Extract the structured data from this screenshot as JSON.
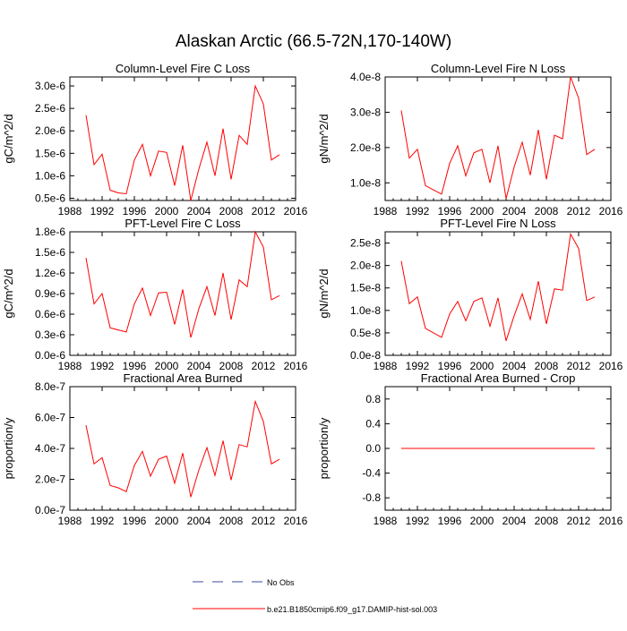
{
  "figure": {
    "title": "Alaskan Arctic (66.5-72N,170-140W)",
    "line_color": "#ff0000",
    "obs_color": "#3b4aa0",
    "axis_color": "#000000"
  },
  "legend": {
    "entries": [
      {
        "label": "No Obs",
        "style": "dashed",
        "color": "#3b4aa0"
      },
      {
        "label": "b.e21.B1850cmip6.f09_g17.DAMIP-hist-sol.003",
        "style": "solid",
        "color": "#ff0000"
      }
    ]
  },
  "chart_data": [
    {
      "type": "line",
      "title": "Column-Level Fire C Loss",
      "ylabel": "gC/m^2/d",
      "xlim": [
        1988,
        2016
      ],
      "ylim": [
        0.45,
        3.2
      ],
      "xticks": [
        1988,
        1992,
        1996,
        2000,
        2004,
        2008,
        2012,
        2016
      ],
      "yticks": [
        0.5,
        1.0,
        1.5,
        2.0,
        2.5,
        3.0
      ],
      "ytick_labels": [
        "0.5e-6",
        "1.0e-6",
        "1.5e-6",
        "2.0e-6",
        "2.5e-6",
        "3.0e-6"
      ],
      "series": [
        {
          "x": [
            1990,
            1991,
            1992,
            1993,
            1994,
            1995,
            1996,
            1997,
            1998,
            1999,
            2000,
            2001,
            2002,
            2003,
            2004,
            2005,
            2006,
            2007,
            2008,
            2009,
            2010,
            2011,
            2012,
            2013,
            2014
          ],
          "values": [
            2.35,
            1.25,
            1.48,
            0.68,
            0.62,
            0.6,
            1.35,
            1.7,
            1.0,
            1.55,
            1.52,
            0.78,
            1.68,
            0.45,
            1.15,
            1.75,
            1.0,
            2.05,
            0.92,
            1.9,
            1.7,
            3.0,
            2.6,
            1.35,
            1.47
          ]
        }
      ]
    },
    {
      "type": "line",
      "title": "Column-Level Fire N Loss",
      "ylabel": "gN/m^2/d",
      "xlim": [
        1988,
        2016
      ],
      "ylim": [
        0.5,
        4.0
      ],
      "xticks": [
        1988,
        1992,
        1996,
        2000,
        2004,
        2008,
        2012,
        2016
      ],
      "yticks": [
        1.0,
        2.0,
        3.0,
        4.0
      ],
      "ytick_labels": [
        "1.0e-8",
        "2.0e-8",
        "3.0e-8",
        "4.0e-8"
      ],
      "series": [
        {
          "x": [
            1990,
            1991,
            1992,
            1993,
            1994,
            1995,
            1996,
            1997,
            1998,
            1999,
            2000,
            2001,
            2002,
            2003,
            2004,
            2005,
            2006,
            2007,
            2008,
            2009,
            2010,
            2011,
            2012,
            2013,
            2014
          ],
          "values": [
            3.05,
            1.7,
            1.95,
            0.92,
            0.8,
            0.68,
            1.55,
            2.05,
            1.2,
            1.85,
            1.95,
            1.0,
            2.05,
            0.55,
            1.45,
            2.15,
            1.22,
            2.5,
            1.1,
            2.35,
            2.25,
            4.0,
            3.4,
            1.8,
            1.95
          ]
        }
      ]
    },
    {
      "type": "line",
      "title": "PFT-Level Fire C Loss",
      "ylabel": "gC/m^2/d",
      "xlim": [
        1988,
        2016
      ],
      "ylim": [
        0.0,
        1.8
      ],
      "xticks": [
        1988,
        1992,
        1996,
        2000,
        2004,
        2008,
        2012,
        2016
      ],
      "yticks": [
        0.0,
        0.3,
        0.6,
        0.9,
        1.2,
        1.5,
        1.8
      ],
      "ytick_labels": [
        "0.0e-6",
        "0.3e-6",
        "0.6e-6",
        "0.9e-6",
        "1.2e-6",
        "1.5e-6",
        "1.8e-6"
      ],
      "series": [
        {
          "x": [
            1990,
            1991,
            1992,
            1993,
            1994,
            1995,
            1996,
            1997,
            1998,
            1999,
            2000,
            2001,
            2002,
            2003,
            2004,
            2005,
            2006,
            2007,
            2008,
            2009,
            2010,
            2011,
            2012,
            2013,
            2014
          ],
          "values": [
            1.42,
            0.75,
            0.9,
            0.4,
            0.37,
            0.34,
            0.75,
            0.98,
            0.58,
            0.91,
            0.92,
            0.45,
            0.96,
            0.26,
            0.68,
            1.0,
            0.58,
            1.2,
            0.52,
            1.1,
            1.0,
            1.8,
            1.58,
            0.81,
            0.87
          ]
        }
      ]
    },
    {
      "type": "line",
      "title": "PFT-Level Fire N Loss",
      "ylabel": "gN/m^2/d",
      "xlim": [
        1988,
        2016
      ],
      "ylim": [
        0.0,
        2.75
      ],
      "xticks": [
        1988,
        1992,
        1996,
        2000,
        2004,
        2008,
        2012,
        2016
      ],
      "yticks": [
        0.0,
        0.5,
        1.0,
        1.5,
        2.0,
        2.5
      ],
      "ytick_labels": [
        "0.0e-8",
        "0.5e-8",
        "1.0e-8",
        "1.5e-8",
        "2.0e-8",
        "2.5e-8"
      ],
      "series": [
        {
          "x": [
            1990,
            1991,
            1992,
            1993,
            1994,
            1995,
            1996,
            1997,
            1998,
            1999,
            2000,
            2001,
            2002,
            2003,
            2004,
            2005,
            2006,
            2007,
            2008,
            2009,
            2010,
            2011,
            2012,
            2013,
            2014
          ],
          "values": [
            2.1,
            1.15,
            1.3,
            0.6,
            0.5,
            0.4,
            0.92,
            1.2,
            0.77,
            1.2,
            1.28,
            0.65,
            1.28,
            0.32,
            0.88,
            1.37,
            0.8,
            1.65,
            0.7,
            1.48,
            1.45,
            2.7,
            2.38,
            1.22,
            1.3
          ]
        }
      ]
    },
    {
      "type": "line",
      "title": "Fractional Area Burned",
      "ylabel": "proportion/y",
      "xlim": [
        1988,
        2016
      ],
      "ylim": [
        0.0,
        8.0
      ],
      "xticks": [
        1988,
        1992,
        1996,
        2000,
        2004,
        2008,
        2012,
        2016
      ],
      "yticks": [
        0.0,
        2.0,
        4.0,
        6.0,
        8.0
      ],
      "ytick_labels": [
        "0.0e-7",
        "2.0e-7",
        "4.0e-7",
        "6.0e-7",
        "8.0e-7"
      ],
      "series": [
        {
          "x": [
            1990,
            1991,
            1992,
            1993,
            1994,
            1995,
            1996,
            1997,
            1998,
            1999,
            2000,
            2001,
            2002,
            2003,
            2004,
            2005,
            2006,
            2007,
            2008,
            2009,
            2010,
            2011,
            2012,
            2013,
            2014
          ],
          "values": [
            5.5,
            3.0,
            3.4,
            1.6,
            1.45,
            1.2,
            2.9,
            3.8,
            2.2,
            3.3,
            3.5,
            1.75,
            3.7,
            0.85,
            2.6,
            4.05,
            2.25,
            4.5,
            1.95,
            4.25,
            4.1,
            7.05,
            5.75,
            3.0,
            3.3
          ]
        }
      ]
    },
    {
      "type": "line",
      "title": "Fractional Area Burned - Crop",
      "ylabel": "proportion/y",
      "xlim": [
        1988,
        2016
      ],
      "ylim": [
        -1.0,
        1.0
      ],
      "xticks": [
        1988,
        1992,
        1996,
        2000,
        2004,
        2008,
        2012,
        2016
      ],
      "yticks": [
        -0.8,
        -0.4,
        0.0,
        0.4,
        0.8
      ],
      "ytick_labels": [
        "-0.8",
        "-0.4",
        "0.0",
        "0.4",
        "0.8"
      ],
      "series": [
        {
          "x": [
            1990,
            1991,
            1992,
            1993,
            1994,
            1995,
            1996,
            1997,
            1998,
            1999,
            2000,
            2001,
            2002,
            2003,
            2004,
            2005,
            2006,
            2007,
            2008,
            2009,
            2010,
            2011,
            2012,
            2013,
            2014
          ],
          "values": [
            0,
            0,
            0,
            0,
            0,
            0,
            0,
            0,
            0,
            0,
            0,
            0,
            0,
            0,
            0,
            0,
            0,
            0,
            0,
            0,
            0,
            0,
            0,
            0,
            0
          ]
        }
      ]
    }
  ]
}
